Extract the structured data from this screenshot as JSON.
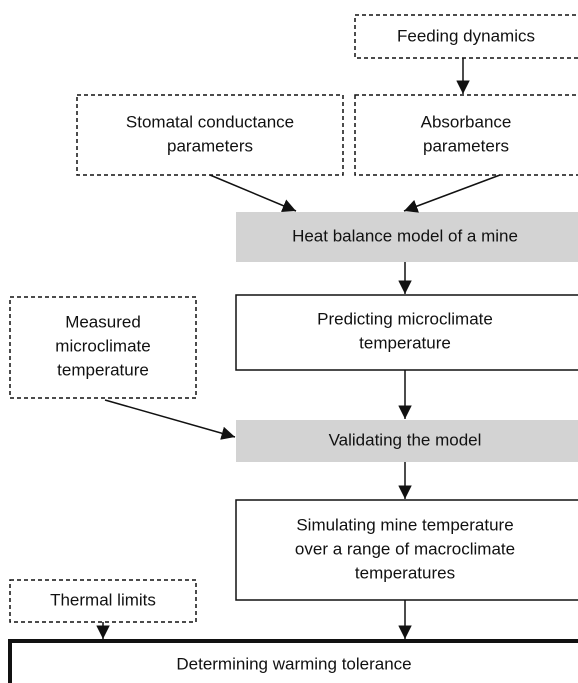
{
  "nodes": [
    {
      "lines": [
        "Feeding dynamics"
      ]
    },
    {
      "lines": [
        "Stomatal conductance",
        "parameters"
      ]
    },
    {
      "lines": [
        "Absorbance",
        "parameters"
      ]
    },
    {
      "lines": [
        "Heat balance model of a mine"
      ]
    },
    {
      "lines": [
        "Predicting microclimate",
        "temperature"
      ]
    },
    {
      "lines": [
        "Measured",
        "microclimate",
        "temperature"
      ]
    },
    {
      "lines": [
        "Validating the model"
      ]
    },
    {
      "lines": [
        "Simulating mine temperature",
        "over a range of macroclimate",
        "temperatures"
      ]
    },
    {
      "lines": [
        "Thermal limits"
      ]
    },
    {
      "lines": [
        "Determining warming tolerance"
      ]
    }
  ]
}
